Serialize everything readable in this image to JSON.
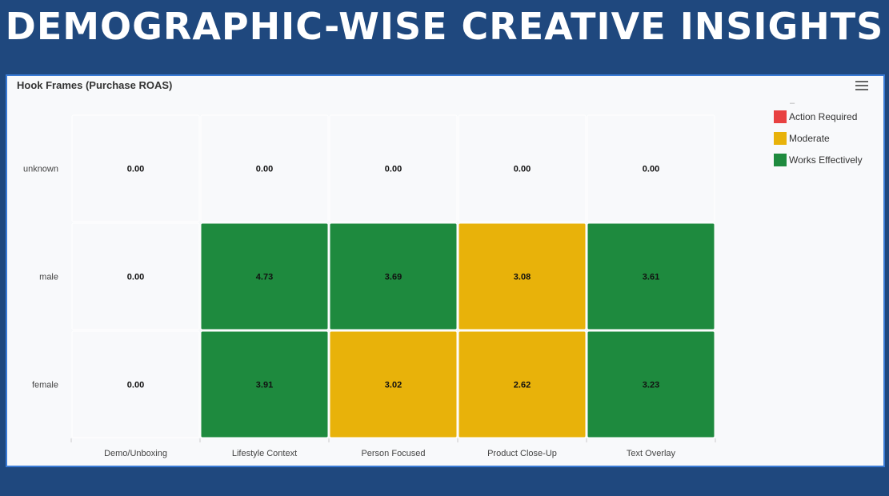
{
  "banner": {
    "title": "DEMOGRAPHIC-WISE CREATIVE INSIGHTS"
  },
  "panel": {
    "title": "Hook Frames (Purchase ROAS)",
    "menu_icon": "hamburger-menu-icon"
  },
  "colors": {
    "action_required": "#e84141",
    "moderate": "#e8b20a",
    "works_effectively": "#1e8a3e",
    "empty": "#f8f9fb",
    "banner_bg": "#1f487e"
  },
  "legend": {
    "dash": "–",
    "items": [
      {
        "label": "Action Required",
        "color": "#e84141"
      },
      {
        "label": "Moderate",
        "color": "#e8b20a"
      },
      {
        "label": "Works Effectively",
        "color": "#1e8a3e"
      }
    ]
  },
  "chart_data": {
    "type": "heatmap",
    "title": "Hook Frames (Purchase ROAS)",
    "x_categories": [
      "Demo/Unboxing",
      "Lifestyle Context",
      "Person Focused",
      "Product Close-Up",
      "Text Overlay"
    ],
    "y_categories": [
      "unknown",
      "male",
      "female"
    ],
    "values": [
      [
        0.0,
        0.0,
        0.0,
        0.0,
        0.0
      ],
      [
        0.0,
        4.73,
        3.69,
        3.08,
        3.61
      ],
      [
        0.0,
        3.91,
        3.02,
        2.62,
        3.23
      ]
    ],
    "value_labels": [
      [
        "0.00",
        "0.00",
        "0.00",
        "0.00",
        "0.00"
      ],
      [
        "0.00",
        "4.73",
        "3.69",
        "3.08",
        "3.61"
      ],
      [
        "0.00",
        "3.91",
        "3.02",
        "2.62",
        "3.23"
      ]
    ],
    "cell_categories": [
      [
        "none",
        "none",
        "none",
        "none",
        "none"
      ],
      [
        "none",
        "Works Effectively",
        "Works Effectively",
        "Moderate",
        "Works Effectively"
      ],
      [
        "none",
        "Works Effectively",
        "Moderate",
        "Moderate",
        "Works Effectively"
      ]
    ],
    "legend_position": "top-right"
  }
}
